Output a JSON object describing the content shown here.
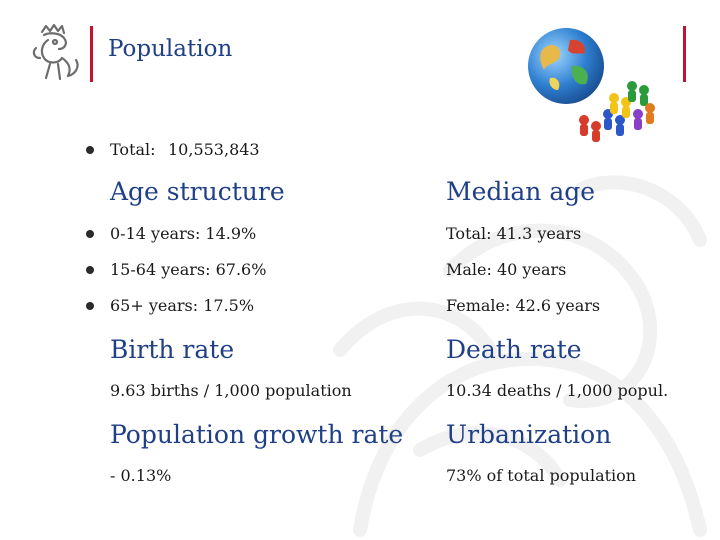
{
  "header": {
    "title": "Population",
    "logo_icon": "czech-lion-emblem-icon",
    "image_icon": "globe-with-pawns-icon"
  },
  "total": {
    "label": "Total:",
    "value": "10,553,843"
  },
  "age_structure": {
    "heading": "Age structure",
    "items": [
      "0-14 years: 14.9%",
      "15-64 years: 67.6%",
      "65+ years: 17.5%"
    ]
  },
  "median_age": {
    "heading": "Median age",
    "items": [
      "Total: 41.3 years",
      "Male: 40 years",
      "Female: 42.6 years"
    ]
  },
  "birth_rate": {
    "heading": "Birth rate",
    "value": "9.63 births / 1,000 population"
  },
  "death_rate": {
    "heading": "Death rate",
    "value": "10.34 deaths / 1,000 popul."
  },
  "growth_rate": {
    "heading": "Population growth rate",
    "value": "- 0.13%"
  },
  "urbanization": {
    "heading": "Urbanization",
    "value": "73% of total population"
  },
  "colors": {
    "accent_red": "#c4122f",
    "heading_blue": "#1f3f86"
  }
}
